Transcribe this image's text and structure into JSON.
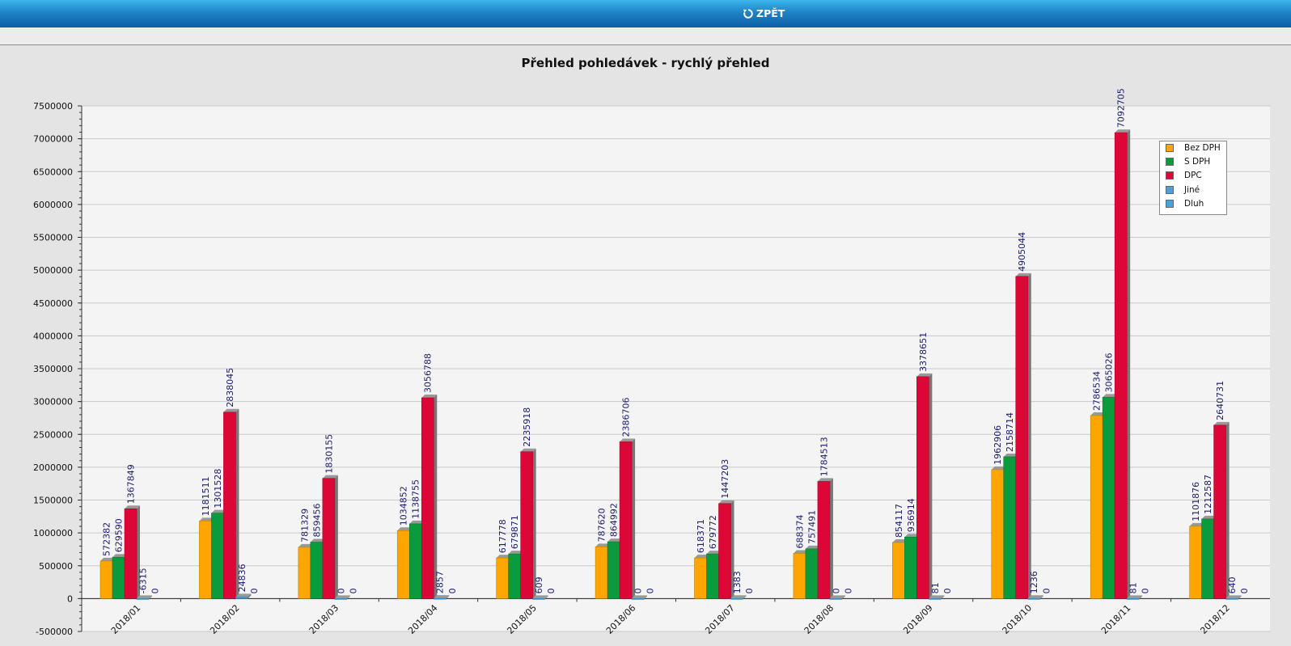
{
  "header": {
    "back_label": "ZPĚT"
  },
  "chart_data": {
    "type": "bar",
    "title": "Přehled pohledávek - rychlý přehled",
    "xlabel": "",
    "ylabel": "",
    "ylim": [
      -500000,
      7500000
    ],
    "ytick_step": 500000,
    "yticks": [
      "-500000",
      "0",
      "500000",
      "1000000",
      "1500000",
      "2000000",
      "2500000",
      "3000000",
      "3500000",
      "4000000",
      "4500000",
      "5000000",
      "5500000",
      "6000000",
      "6500000",
      "7000000",
      "7500000"
    ],
    "grid": true,
    "legend_position": "top-right",
    "categories": [
      "2018/01",
      "2018/02",
      "2018/03",
      "2018/04",
      "2018/05",
      "2018/06",
      "2018/07",
      "2018/08",
      "2018/09",
      "2018/10",
      "2018/11",
      "2018/12"
    ],
    "series": [
      {
        "name": "Bez DPH",
        "color": "#ffa500",
        "values": [
          572382,
          1181511,
          781329,
          1034852,
          617778,
          787620,
          618371,
          688374,
          854117,
          1962906,
          2786534,
          1101876
        ]
      },
      {
        "name": "S DPH",
        "color": "#0a9b3c",
        "values": [
          629590,
          1301528,
          859456,
          1138755,
          679871,
          864992,
          679772,
          757491,
          936914,
          2158714,
          3065026,
          1212587
        ]
      },
      {
        "name": "DPC",
        "color": "#dc0637",
        "values": [
          1367849,
          2838045,
          1830155,
          3056788,
          2235918,
          2386706,
          1447203,
          1784513,
          3378651,
          4905044,
          7092705,
          2640731
        ]
      },
      {
        "name": "Jiné",
        "color": "#4a9fe0",
        "values": [
          -6315,
          24836,
          0,
          2857,
          609,
          0,
          1383,
          0,
          81,
          1236,
          81,
          640
        ]
      },
      {
        "name": "Dluh",
        "color": "#4a9fe0",
        "values": [
          0,
          0,
          0,
          0,
          0,
          0,
          0,
          0,
          0,
          0,
          0,
          0
        ]
      }
    ]
  }
}
